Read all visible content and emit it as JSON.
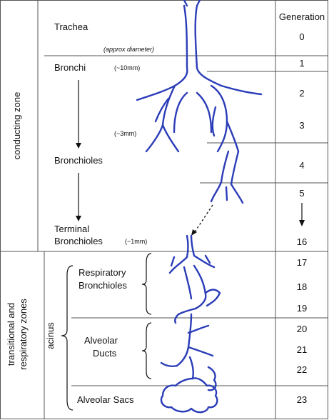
{
  "zones": {
    "conducting": "conducting zone",
    "transitional_line1": "transitional and",
    "transitional_line2": "respiratory zones",
    "acinus": "acinus"
  },
  "structures": {
    "trachea": "Trachea",
    "bronchi": "Bronchi",
    "bronchioles": "Bronchioles",
    "terminal_line1": "Terminal",
    "terminal_line2": "Bronchioles",
    "respiratory_line1": "Respiratory",
    "respiratory_line2": "Bronchioles",
    "alveolar_ducts_line1": "Alveolar",
    "alveolar_ducts_line2": "Ducts",
    "alveolar_sacs": "Alveolar Sacs"
  },
  "diameters": {
    "header": "(approx diameter)",
    "bronchi": "(~10mm)",
    "small_bronchi": "(~3mm)",
    "terminal": "(~1mm)"
  },
  "generation": {
    "header": "Generation",
    "values": [
      "0",
      "1",
      "2",
      "3",
      "4",
      "5",
      "16",
      "17",
      "18",
      "19",
      "20",
      "21",
      "22",
      "23"
    ]
  }
}
